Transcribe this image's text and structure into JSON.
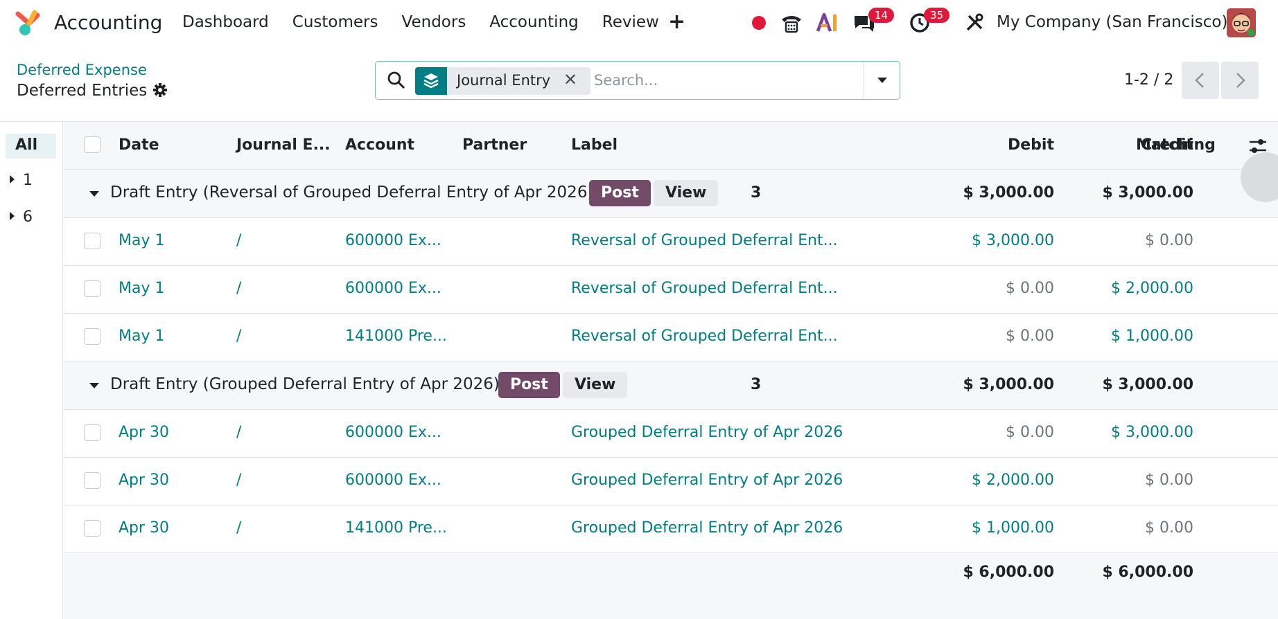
{
  "navbar": {
    "app_name": "Accounting",
    "menu": [
      "Dashboard",
      "Customers",
      "Vendors",
      "Accounting",
      "Review"
    ],
    "plus": "+",
    "messages_badge": "14",
    "activities_badge": "35",
    "company": "My Company (San Francisco)"
  },
  "control": {
    "breadcrumb": "Deferred Expense",
    "title": "Deferred Entries",
    "facet_label": "Journal Entry",
    "facet_close": "✕",
    "search_placeholder": "Search...",
    "pager": "1-2 / 2"
  },
  "sidepanel": {
    "all": "All",
    "items": [
      "1",
      "6"
    ]
  },
  "table": {
    "headers": {
      "date": "Date",
      "journal_entry": "Journal E...",
      "account": "Account",
      "partner": "Partner",
      "label": "Label",
      "debit": "Debit",
      "credit": "Credit",
      "matching": "Matching"
    },
    "groups": [
      {
        "title": "Draft Entry (Reversal of Grouped Deferral Entry of Apr 2026)",
        "post": "Post",
        "view": "View",
        "count": "3",
        "debit": "$ 3,000.00",
        "credit": "$ 3,000.00",
        "rows": [
          {
            "date": "May 1",
            "entry": "/",
            "account": "600000 Ex...",
            "partner": "",
            "label": "Reversal of Grouped Deferral Ent...",
            "debit": "$ 3,000.00",
            "credit": "$ 0.00"
          },
          {
            "date": "May 1",
            "entry": "/",
            "account": "600000 Ex...",
            "partner": "",
            "label": "Reversal of Grouped Deferral Ent...",
            "debit": "$ 0.00",
            "credit": "$ 2,000.00"
          },
          {
            "date": "May 1",
            "entry": "/",
            "account": "141000 Pre...",
            "partner": "",
            "label": "Reversal of Grouped Deferral Ent...",
            "debit": "$ 0.00",
            "credit": "$ 1,000.00"
          }
        ]
      },
      {
        "title": "Draft Entry (Grouped Deferral Entry of Apr 2026)",
        "post": "Post",
        "view": "View",
        "count": "3",
        "debit": "$ 3,000.00",
        "credit": "$ 3,000.00",
        "rows": [
          {
            "date": "Apr 30",
            "entry": "/",
            "account": "600000 Ex...",
            "partner": "",
            "label": "Grouped Deferral Entry of Apr 2026",
            "debit": "$ 0.00",
            "credit": "$ 3,000.00"
          },
          {
            "date": "Apr 30",
            "entry": "/",
            "account": "600000 Ex...",
            "partner": "",
            "label": "Grouped Deferral Entry of Apr 2026",
            "debit": "$ 2,000.00",
            "credit": "$ 0.00"
          },
          {
            "date": "Apr 30",
            "entry": "/",
            "account": "141000 Pre...",
            "partner": "",
            "label": "Grouped Deferral Entry of Apr 2026",
            "debit": "$ 1,000.00",
            "credit": "$ 0.00"
          }
        ]
      }
    ],
    "totals": {
      "debit": "$ 6,000.00",
      "credit": "$ 6,000.00"
    }
  },
  "colors": {
    "accent_teal": "#017e84",
    "post_purple": "#714b67",
    "badge_red": "#e0183b"
  },
  "icons": [
    "app-logo-icon",
    "record-dot-icon",
    "phone-icon",
    "ai-icon",
    "chat-icon",
    "clock-icon",
    "tools-icon",
    "gear-icon",
    "search-icon",
    "layers-icon",
    "caret-down-icon",
    "chevron-left-icon",
    "chevron-right-icon",
    "column-settings-icon"
  ]
}
